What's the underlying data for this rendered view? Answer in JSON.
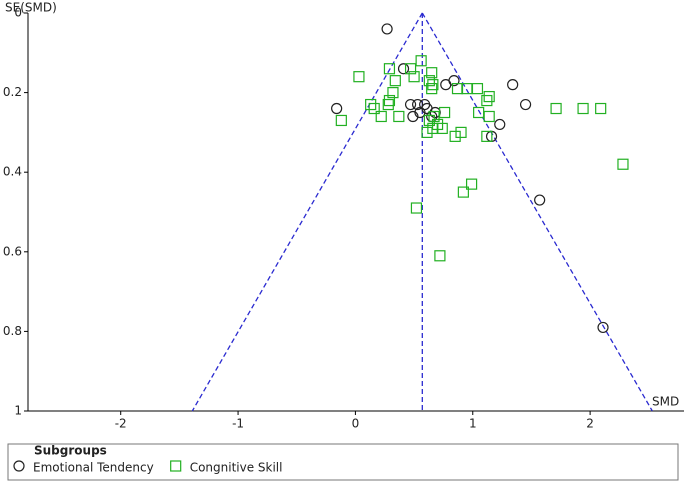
{
  "chart_data": {
    "type": "scatter",
    "y_label": "SE(SMD)",
    "x_label": "SMD",
    "xlim": [
      -2.79,
      2.8
    ],
    "xticks": [
      -2,
      -1,
      0,
      1,
      2
    ],
    "ylim": [
      0,
      1
    ],
    "yticks": [
      0,
      0.2,
      0.4,
      0.6,
      0.8,
      1
    ],
    "y_inverted": true,
    "reference_line": 0.57,
    "funnel_limits": [
      -1.39,
      2.53
    ],
    "funnel_color": "#2a2ad0",
    "legend_title": "Subgroups",
    "series": [
      {
        "name": "Emotional Tendency",
        "color": "#222222",
        "marker": "circle",
        "x": [
          0.27,
          0.41,
          -0.16,
          0.47,
          0.53,
          0.59,
          0.49,
          0.55,
          0.61,
          0.65,
          0.68,
          0.77,
          0.84,
          1.34,
          1.45,
          1.23,
          1.16,
          1.57,
          2.11
        ],
        "values": [
          0.04,
          0.14,
          0.24,
          0.23,
          0.23,
          0.23,
          0.26,
          0.25,
          0.24,
          0.26,
          0.25,
          0.18,
          0.17,
          0.18,
          0.23,
          0.28,
          0.31,
          0.47,
          0.79
        ]
      },
      {
        "name": "Congnitive Skill",
        "color": "#22b022",
        "marker": "square",
        "x": [
          0.56,
          0.29,
          0.03,
          0.47,
          0.65,
          0.5,
          0.34,
          0.63,
          0.66,
          0.65,
          0.87,
          0.95,
          1.04,
          1.14,
          1.12,
          0.32,
          0.29,
          0.13,
          0.16,
          0.28,
          0.37,
          -0.12,
          0.22,
          0.76,
          0.67,
          0.7,
          0.66,
          0.63,
          0.74,
          0.9,
          0.85,
          0.61,
          1.05,
          1.14,
          1.12,
          1.71,
          1.94,
          2.09,
          2.28,
          0.99,
          0.92,
          0.52,
          0.72
        ],
        "values": [
          0.12,
          0.14,
          0.16,
          0.14,
          0.15,
          0.16,
          0.17,
          0.17,
          0.18,
          0.19,
          0.19,
          0.19,
          0.19,
          0.21,
          0.22,
          0.2,
          0.22,
          0.23,
          0.24,
          0.23,
          0.26,
          0.27,
          0.26,
          0.25,
          0.26,
          0.28,
          0.29,
          0.27,
          0.29,
          0.3,
          0.31,
          0.3,
          0.25,
          0.26,
          0.31,
          0.24,
          0.24,
          0.24,
          0.38,
          0.43,
          0.45,
          0.49,
          0.61
        ]
      }
    ]
  }
}
